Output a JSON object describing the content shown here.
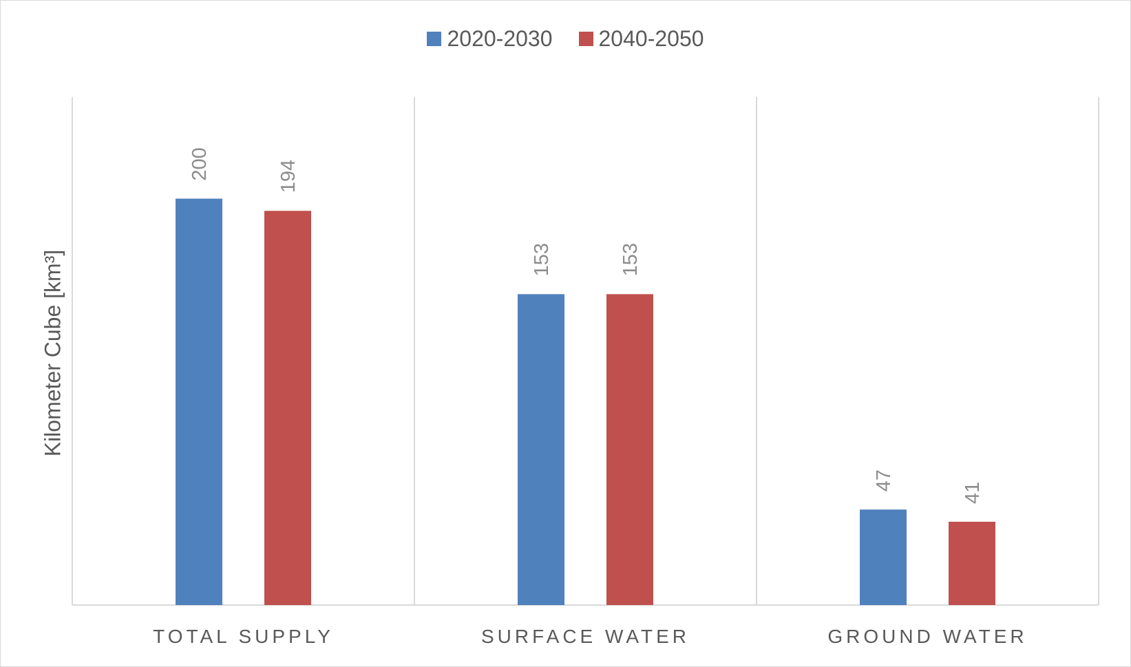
{
  "chart_data": {
    "type": "bar",
    "categories": [
      "TOTAL SUPPLY",
      "SURFACE WATER",
      "GROUND WATER"
    ],
    "series": [
      {
        "name": "2020-2030",
        "color": "#4f81bd",
        "values": [
          200,
          153,
          47
        ]
      },
      {
        "name": "2040-2050",
        "color": "#c0504d",
        "values": [
          194,
          153,
          41
        ]
      }
    ],
    "ylabel": "Kilometer Cube [km³]",
    "ylim": [
      0,
      250
    ],
    "legend_position": "top-center",
    "grid": "vertical category separators"
  }
}
